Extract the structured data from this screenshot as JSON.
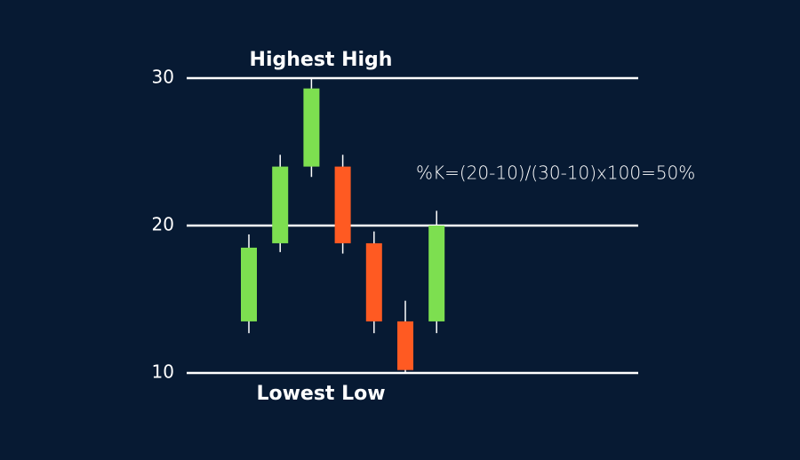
{
  "chart_data": {
    "type": "candlestick",
    "categories": [
      null,
      null,
      null,
      null,
      null,
      null,
      null
    ],
    "open": [
      13.5,
      18.8,
      24.0,
      24.0,
      18.8,
      13.5,
      13.5
    ],
    "close": [
      18.5,
      24.0,
      29.3,
      18.8,
      13.5,
      10.2,
      20
    ],
    "high": [
      19.4,
      24.8,
      30,
      24.8,
      19.6,
      14.9,
      21
    ],
    "low": [
      12.7,
      18.2,
      23.3,
      18.1,
      12.7,
      10,
      12.7
    ],
    "up_color": "#7ddf50",
    "down_color": "#ff5a22",
    "ylim": [
      10,
      30
    ],
    "yticks": [
      10,
      20,
      30
    ],
    "grid": true,
    "annotations": {
      "top": "Highest High",
      "bottom": "Lowest Low",
      "formula": "%K=(20-10)/(30-10)x100=50%"
    }
  }
}
